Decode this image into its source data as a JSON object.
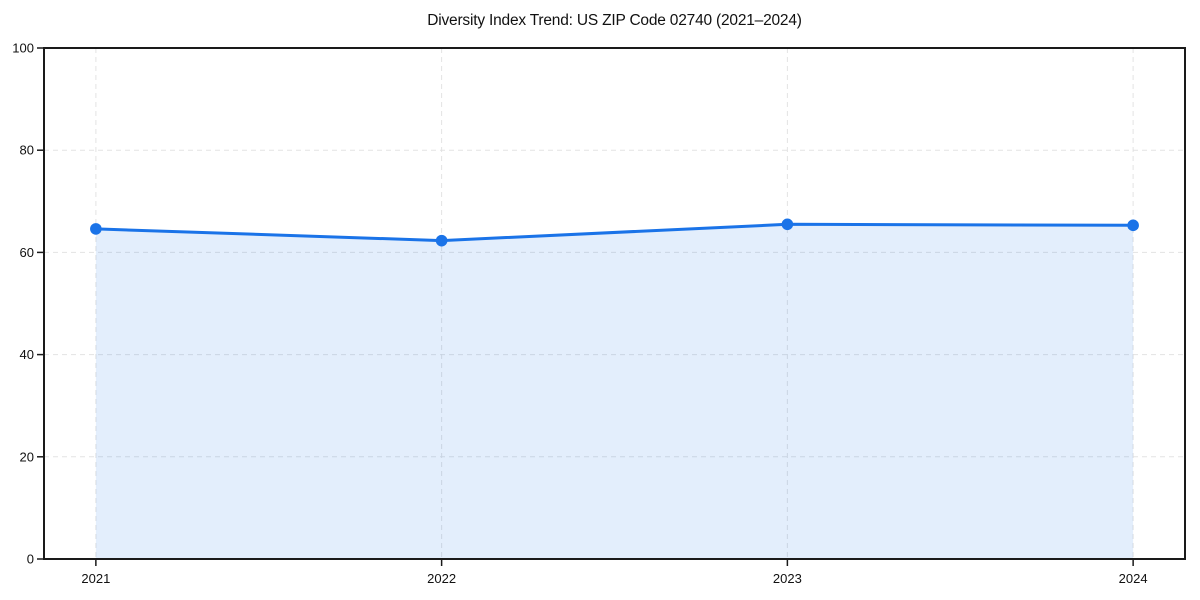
{
  "window": {
    "background": "#ffffff"
  },
  "chart_data": {
    "type": "area",
    "title": "Diversity Index Trend: US ZIP Code 02740 (2021–2024)",
    "series": [
      {
        "name": "Diversity Index",
        "x": [
          2021,
          2022,
          2023,
          2024
        ],
        "values": [
          64.6,
          62.3,
          65.5,
          65.3
        ]
      }
    ],
    "x_ticks": [
      "2021",
      "2022",
      "2023",
      "2024"
    ],
    "y_ticks": [
      "0",
      "20",
      "40",
      "60",
      "80",
      "100"
    ],
    "xlim": [
      2020.85,
      2024.15
    ],
    "ylim": [
      0,
      100
    ],
    "xlabel": "",
    "ylabel": "",
    "grid": "dashed",
    "legend": "none",
    "markers": "circle",
    "colors": {
      "line": "#1a73e8",
      "marker": "#1a73e8",
      "area_fill": "rgba(26,115,232,0.12)",
      "grid": "#e0e0e0",
      "spine": "#1a1a1a",
      "text": "#111111"
    }
  }
}
